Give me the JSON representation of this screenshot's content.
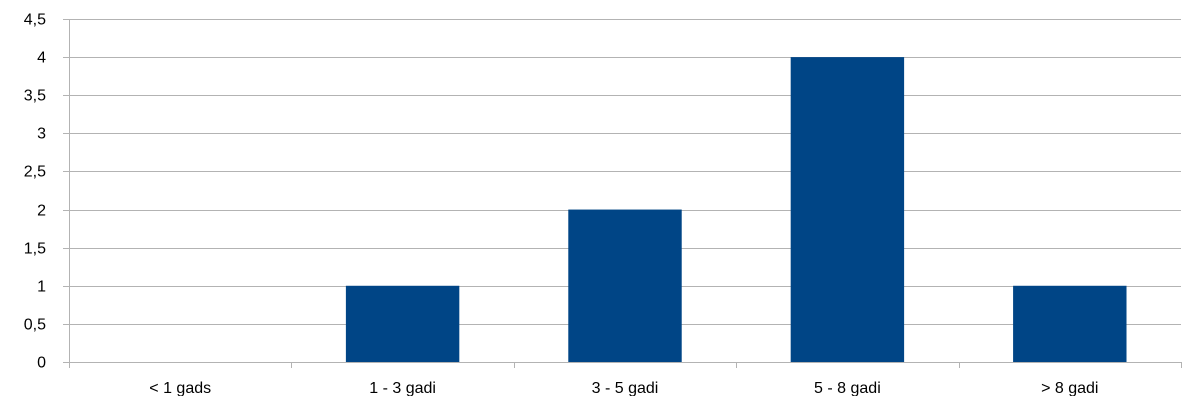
{
  "chart_data": {
    "type": "bar",
    "categories": [
      "< 1 gads",
      "1 - 3 gadi",
      "3 - 5 gadi",
      "5 - 8 gadi",
      "> 8 gadi"
    ],
    "values": [
      0,
      1,
      2,
      4,
      1
    ],
    "ylim": [
      0,
      4.5
    ],
    "yticks": [
      0,
      0.5,
      1,
      1.5,
      2,
      2.5,
      3,
      3.5,
      4,
      4.5
    ],
    "ytick_labels": [
      "0",
      "0,5",
      "1",
      "1,5",
      "2",
      "2,5",
      "3",
      "3,5",
      "4",
      "4,5"
    ],
    "title": "",
    "xlabel": "",
    "ylabel": "",
    "grid": true,
    "legend": "none",
    "colors": {
      "bar": "#004586",
      "grid": "#b3b3b3",
      "axis": "#b3b3b3",
      "text": "#000000"
    }
  }
}
